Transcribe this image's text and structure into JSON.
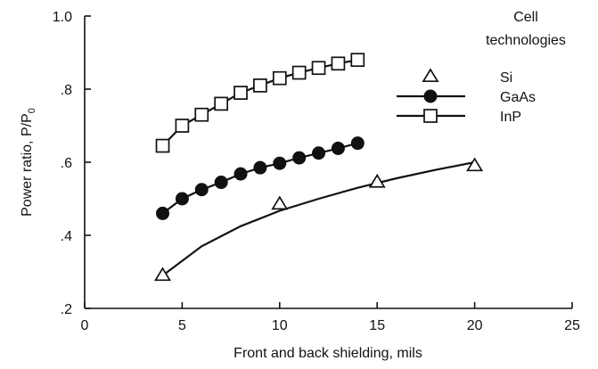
{
  "chart_data": {
    "type": "line",
    "xlabel": "Front and back shielding, mils",
    "ylabel": "Power ratio, P/P",
    "ylabel_subscript": "0",
    "xlim": [
      0,
      25
    ],
    "ylim": [
      0.2,
      1.0
    ],
    "x_ticks": [
      0,
      5,
      10,
      15,
      20,
      25
    ],
    "x_tick_labels": [
      "0",
      "5",
      "10",
      "15",
      "20",
      "25"
    ],
    "y_ticks": [
      0.2,
      0.4,
      0.6,
      0.8,
      1.0
    ],
    "y_tick_labels": [
      ".2",
      ".4",
      ".6",
      ".8",
      "1.0"
    ],
    "grid": false,
    "legend_title": "Cell technologies",
    "legend_placement": "top-right",
    "series": [
      {
        "name": "Si",
        "marker": "triangle",
        "x": [
          4,
          10,
          15,
          20
        ],
        "values": [
          0.29,
          0.485,
          0.545,
          0.59
        ],
        "fit_curve": {
          "x": [
            4,
            6,
            8,
            10,
            12,
            14,
            16,
            18,
            20
          ],
          "y": [
            0.29,
            0.37,
            0.425,
            0.467,
            0.5,
            0.53,
            0.556,
            0.579,
            0.6
          ]
        }
      },
      {
        "name": "GaAs",
        "marker": "filled-circle",
        "x": [
          4,
          5,
          6,
          7,
          8,
          9,
          10,
          11,
          12,
          13,
          14
        ],
        "values": [
          0.46,
          0.5,
          0.525,
          0.545,
          0.568,
          0.585,
          0.597,
          0.612,
          0.625,
          0.638,
          0.652
        ]
      },
      {
        "name": "InP",
        "marker": "open-square",
        "x": [
          4,
          5,
          6,
          7,
          8,
          9,
          10,
          11,
          12,
          13,
          14
        ],
        "values": [
          0.645,
          0.7,
          0.73,
          0.76,
          0.79,
          0.81,
          0.83,
          0.845,
          0.858,
          0.87,
          0.88
        ]
      }
    ]
  }
}
